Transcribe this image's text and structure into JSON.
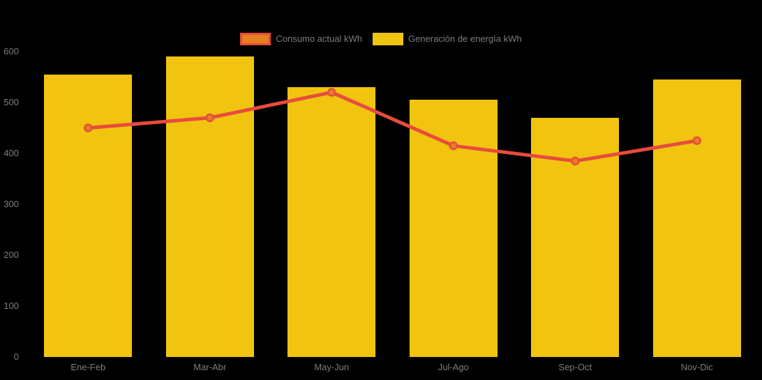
{
  "window": {
    "background": "#000000"
  },
  "chart_data": {
    "type": "bar",
    "subtype": "combo-bar-line",
    "title": "",
    "categories": [
      "Ene-Feb",
      "Mar-Abr",
      "May-Jun",
      "Jul-Ago",
      "Sep-Oct",
      "Nov-Dic"
    ],
    "series": [
      {
        "name": "Consumo actual kWh",
        "type": "line",
        "color": "#e74c3c",
        "point_color": "#e67e22",
        "values": [
          450,
          470,
          520,
          415,
          385,
          425
        ]
      },
      {
        "name": "Generación de energía kWh",
        "type": "bar",
        "color": "#f1c40f",
        "values": [
          555,
          590,
          530,
          505,
          470,
          545
        ]
      }
    ],
    "xlabel": "",
    "ylabel": "",
    "ylim": [
      0,
      600
    ],
    "yticks": [
      0,
      100,
      200,
      300,
      400,
      500,
      600
    ],
    "grid": false,
    "legend_position": "top",
    "axis_label_color": "#7f7f7f",
    "legend_label_color": "#7d7d7d",
    "background": "#000000"
  }
}
